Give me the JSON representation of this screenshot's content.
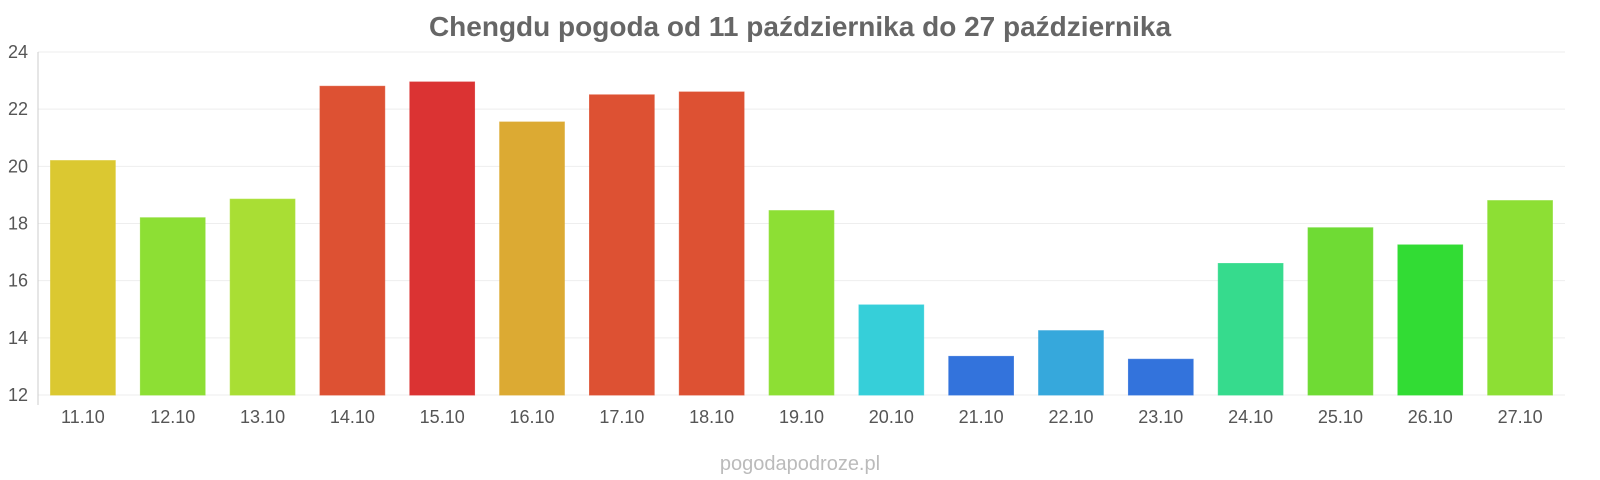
{
  "chart_data": {
    "type": "bar",
    "title": "Chengdu pogoda od 11 października do 27 października",
    "xlabel": "",
    "ylabel": "",
    "ylim": [
      12,
      24
    ],
    "yticks": [
      12,
      14,
      16,
      18,
      20,
      22,
      24
    ],
    "grid": true,
    "categories": [
      "11.10",
      "12.10",
      "13.10",
      "14.10",
      "15.10",
      "16.10",
      "17.10",
      "18.10",
      "19.10",
      "20.10",
      "21.10",
      "22.10",
      "23.10",
      "24.10",
      "25.10",
      "26.10",
      "27.10"
    ],
    "values": [
      20.2,
      18.2,
      18.85,
      22.8,
      22.95,
      21.55,
      22.5,
      22.6,
      18.45,
      15.15,
      13.35,
      14.25,
      13.25,
      16.6,
      17.85,
      17.25,
      18.8
    ],
    "colors": [
      "#dbc831",
      "#8ddf34",
      "#a9de34",
      "#dd5133",
      "#db3333",
      "#dcaa33",
      "#dd5133",
      "#dd5133",
      "#8ddf34",
      "#36cfd9",
      "#3373dc",
      "#36a8dc",
      "#3373dc",
      "#36db8d",
      "#6fdb34",
      "#32dc34",
      "#8ddf34"
    ]
  },
  "footer": {
    "source": "pogodapodroze.pl"
  }
}
